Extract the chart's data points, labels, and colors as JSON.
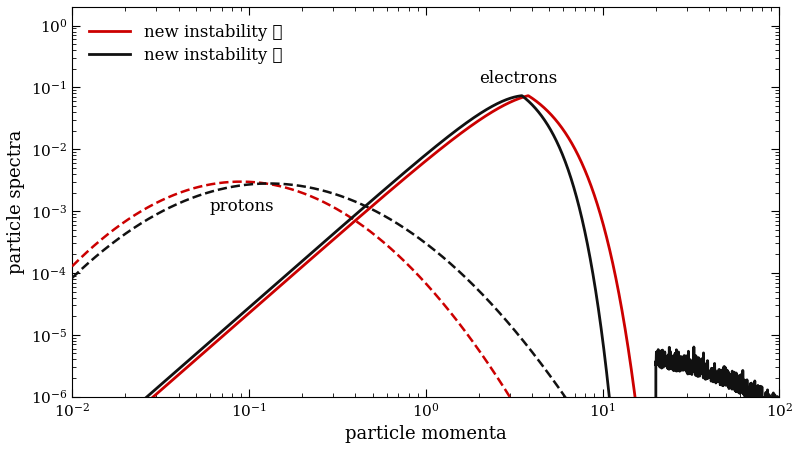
{
  "xlabel": "particle momenta",
  "ylabel": "particle spectra",
  "xlim": [
    0.01,
    100
  ],
  "ylim": [
    1e-06,
    2
  ],
  "color_red": "#cc0000",
  "color_black": "#111111",
  "legend_entries": [
    "new instability ✓",
    "new instability ✗"
  ],
  "protons_label": "protons",
  "electrons_label": "electrons"
}
